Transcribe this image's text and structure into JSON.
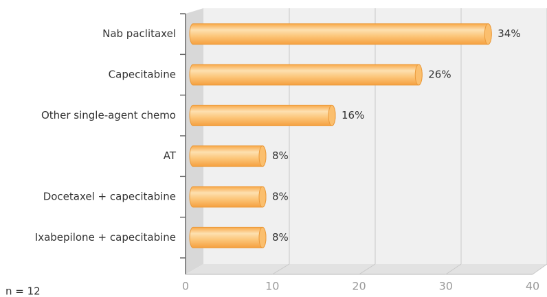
{
  "chart_data": {
    "type": "bar",
    "orientation": "horizontal",
    "categories": [
      "Nab paclitaxel",
      "Capecitabine",
      "Other single-agent chemo",
      "AT",
      "Docetaxel + capecitabine",
      "Ixabepilone + capecitabine"
    ],
    "values": [
      34,
      26,
      16,
      8,
      8,
      8
    ],
    "value_labels": [
      "34%",
      "26%",
      "16%",
      "8%",
      "8%",
      "8%"
    ],
    "color": "#fbb45a",
    "xlim": [
      0,
      40
    ],
    "xticks": [
      0,
      10,
      20,
      30,
      40
    ],
    "grid": true,
    "note": "n = 12"
  }
}
